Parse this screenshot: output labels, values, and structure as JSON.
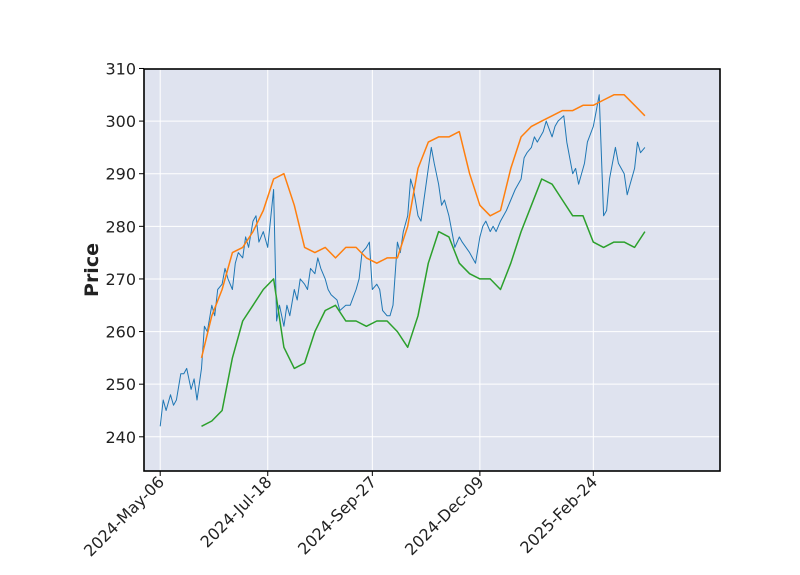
{
  "chart_data": {
    "type": "line",
    "title": "",
    "xlabel": "",
    "ylabel": "Price",
    "ylim": [
      233.5,
      309.9
    ],
    "yticks": [
      240,
      250,
      260,
      270,
      280,
      290,
      300,
      310
    ],
    "xlim": [
      "2024-04-25",
      "2025-05-21"
    ],
    "xticks": [
      "2024-May-06",
      "2024-Jul-18",
      "2024-Sep-27",
      "2024-Dec-09",
      "2025-Feb-24"
    ],
    "grid": true,
    "legend": "none",
    "background": "#dfe3ef",
    "series": [
      {
        "color": "#1f77b4",
        "points": [
          [
            "2024-05-06",
            242
          ],
          [
            "2024-05-08",
            247
          ],
          [
            "2024-05-10",
            245
          ],
          [
            "2024-05-13",
            248
          ],
          [
            "2024-05-15",
            246
          ],
          [
            "2024-05-17",
            247
          ],
          [
            "2024-05-20",
            252
          ],
          [
            "2024-05-22",
            252
          ],
          [
            "2024-05-24",
            253
          ],
          [
            "2024-05-27",
            249
          ],
          [
            "2024-05-29",
            251
          ],
          [
            "2024-05-31",
            247
          ],
          [
            "2024-06-03",
            253
          ],
          [
            "2024-06-05",
            261
          ],
          [
            "2024-06-07",
            260
          ],
          [
            "2024-06-10",
            265
          ],
          [
            "2024-06-12",
            263
          ],
          [
            "2024-06-14",
            268
          ],
          [
            "2024-06-17",
            269
          ],
          [
            "2024-06-19",
            272
          ],
          [
            "2024-06-21",
            270
          ],
          [
            "2024-06-24",
            268
          ],
          [
            "2024-06-26",
            273
          ],
          [
            "2024-06-28",
            275
          ],
          [
            "2024-07-01",
            274
          ],
          [
            "2024-07-03",
            278
          ],
          [
            "2024-07-05",
            276
          ],
          [
            "2024-07-08",
            281
          ],
          [
            "2024-07-10",
            282
          ],
          [
            "2024-07-12",
            277
          ],
          [
            "2024-07-15",
            279
          ],
          [
            "2024-07-18",
            276
          ],
          [
            "2024-07-22",
            287
          ],
          [
            "2024-07-24",
            262
          ],
          [
            "2024-07-26",
            265
          ],
          [
            "2024-07-29",
            261
          ],
          [
            "2024-07-31",
            265
          ],
          [
            "2024-08-02",
            263
          ],
          [
            "2024-08-05",
            268
          ],
          [
            "2024-08-07",
            266
          ],
          [
            "2024-08-09",
            270
          ],
          [
            "2024-08-12",
            269
          ],
          [
            "2024-08-14",
            268
          ],
          [
            "2024-08-16",
            272
          ],
          [
            "2024-08-19",
            271
          ],
          [
            "2024-08-21",
            274
          ],
          [
            "2024-08-23",
            272
          ],
          [
            "2024-08-26",
            270
          ],
          [
            "2024-08-28",
            268
          ],
          [
            "2024-08-30",
            267
          ],
          [
            "2024-09-03",
            266
          ],
          [
            "2024-09-05",
            264
          ],
          [
            "2024-09-09",
            265
          ],
          [
            "2024-09-12",
            265
          ],
          [
            "2024-09-16",
            268
          ],
          [
            "2024-09-18",
            270
          ],
          [
            "2024-09-20",
            275
          ],
          [
            "2024-09-23",
            276
          ],
          [
            "2024-09-25",
            277
          ],
          [
            "2024-09-27",
            268
          ],
          [
            "2024-09-30",
            269
          ],
          [
            "2024-10-02",
            268
          ],
          [
            "2024-10-04",
            264
          ],
          [
            "2024-10-07",
            263
          ],
          [
            "2024-10-09",
            263
          ],
          [
            "2024-10-11",
            265
          ],
          [
            "2024-10-14",
            277
          ],
          [
            "2024-10-16",
            275
          ],
          [
            "2024-10-18",
            279
          ],
          [
            "2024-10-21",
            282
          ],
          [
            "2024-10-23",
            289
          ],
          [
            "2024-10-25",
            287
          ],
          [
            "2024-10-28",
            282
          ],
          [
            "2024-10-30",
            281
          ],
          [
            "2024-11-01",
            285
          ],
          [
            "2024-11-04",
            291
          ],
          [
            "2024-11-06",
            295
          ],
          [
            "2024-11-08",
            292
          ],
          [
            "2024-11-11",
            288
          ],
          [
            "2024-11-13",
            284
          ],
          [
            "2024-11-15",
            285
          ],
          [
            "2024-11-18",
            282
          ],
          [
            "2024-11-20",
            279
          ],
          [
            "2024-11-22",
            276
          ],
          [
            "2024-11-25",
            278
          ],
          [
            "2024-11-27",
            277
          ],
          [
            "2024-12-02",
            275
          ],
          [
            "2024-12-04",
            274
          ],
          [
            "2024-12-06",
            273
          ],
          [
            "2024-12-09",
            278
          ],
          [
            "2024-12-11",
            280
          ],
          [
            "2024-12-13",
            281
          ],
          [
            "2024-12-16",
            279
          ],
          [
            "2024-12-18",
            280
          ],
          [
            "2024-12-20",
            279
          ],
          [
            "2024-12-23",
            281
          ],
          [
            "2024-12-27",
            283
          ],
          [
            "2024-12-30",
            285
          ],
          [
            "2025-01-02",
            287
          ],
          [
            "2025-01-06",
            289
          ],
          [
            "2025-01-08",
            293
          ],
          [
            "2025-01-10",
            294
          ],
          [
            "2025-01-13",
            295
          ],
          [
            "2025-01-15",
            297
          ],
          [
            "2025-01-17",
            296
          ],
          [
            "2025-01-21",
            298
          ],
          [
            "2025-01-23",
            300
          ],
          [
            "2025-01-27",
            297
          ],
          [
            "2025-01-29",
            299
          ],
          [
            "2025-01-31",
            300
          ],
          [
            "2025-02-04",
            301
          ],
          [
            "2025-02-06",
            296
          ],
          [
            "2025-02-10",
            290
          ],
          [
            "2025-02-12",
            291
          ],
          [
            "2025-02-14",
            288
          ],
          [
            "2025-02-18",
            292
          ],
          [
            "2025-02-20",
            296
          ],
          [
            "2025-02-24",
            299
          ],
          [
            "2025-02-26",
            302
          ],
          [
            "2025-02-28",
            305
          ],
          [
            "2025-03-03",
            282
          ],
          [
            "2025-03-05",
            283
          ],
          [
            "2025-03-07",
            289
          ],
          [
            "2025-03-11",
            295
          ],
          [
            "2025-03-13",
            292
          ],
          [
            "2025-03-17",
            290
          ],
          [
            "2025-03-19",
            286
          ],
          [
            "2025-03-21",
            288
          ],
          [
            "2025-03-24",
            291
          ],
          [
            "2025-03-26",
            296
          ],
          [
            "2025-03-28",
            294
          ],
          [
            "2025-03-31",
            295
          ]
        ]
      },
      {
        "color": "#ff7f0e",
        "points": [
          [
            "2024-06-03",
            255
          ],
          [
            "2024-06-10",
            263
          ],
          [
            "2024-06-17",
            268
          ],
          [
            "2024-06-24",
            275
          ],
          [
            "2024-07-01",
            276
          ],
          [
            "2024-07-08",
            279
          ],
          [
            "2024-07-15",
            283
          ],
          [
            "2024-07-22",
            289
          ],
          [
            "2024-07-29",
            290
          ],
          [
            "2024-08-05",
            284
          ],
          [
            "2024-08-12",
            276
          ],
          [
            "2024-08-19",
            275
          ],
          [
            "2024-08-26",
            276
          ],
          [
            "2024-09-02",
            274
          ],
          [
            "2024-09-09",
            276
          ],
          [
            "2024-09-16",
            276
          ],
          [
            "2024-09-23",
            274
          ],
          [
            "2024-09-30",
            273
          ],
          [
            "2024-10-07",
            274
          ],
          [
            "2024-10-14",
            274
          ],
          [
            "2024-10-21",
            280
          ],
          [
            "2024-10-28",
            291
          ],
          [
            "2024-11-04",
            296
          ],
          [
            "2024-11-11",
            297
          ],
          [
            "2024-11-18",
            297
          ],
          [
            "2024-11-25",
            298
          ],
          [
            "2024-12-02",
            290
          ],
          [
            "2024-12-09",
            284
          ],
          [
            "2024-12-16",
            282
          ],
          [
            "2024-12-23",
            283
          ],
          [
            "2024-12-30",
            291
          ],
          [
            "2025-01-06",
            297
          ],
          [
            "2025-01-13",
            299
          ],
          [
            "2025-01-20",
            300
          ],
          [
            "2025-01-27",
            301
          ],
          [
            "2025-02-03",
            302
          ],
          [
            "2025-02-10",
            302
          ],
          [
            "2025-02-17",
            303
          ],
          [
            "2025-02-24",
            303
          ],
          [
            "2025-03-03",
            304
          ],
          [
            "2025-03-10",
            305
          ],
          [
            "2025-03-17",
            305
          ],
          [
            "2025-03-24",
            303
          ],
          [
            "2025-03-31",
            301
          ]
        ]
      },
      {
        "color": "#2ca02c",
        "points": [
          [
            "2024-06-03",
            242
          ],
          [
            "2024-06-10",
            243
          ],
          [
            "2024-06-17",
            245
          ],
          [
            "2024-06-24",
            255
          ],
          [
            "2024-07-01",
            262
          ],
          [
            "2024-07-08",
            265
          ],
          [
            "2024-07-15",
            268
          ],
          [
            "2024-07-22",
            270
          ],
          [
            "2024-07-29",
            257
          ],
          [
            "2024-08-05",
            253
          ],
          [
            "2024-08-12",
            254
          ],
          [
            "2024-08-19",
            260
          ],
          [
            "2024-08-26",
            264
          ],
          [
            "2024-09-02",
            265
          ],
          [
            "2024-09-09",
            262
          ],
          [
            "2024-09-16",
            262
          ],
          [
            "2024-09-23",
            261
          ],
          [
            "2024-09-30",
            262
          ],
          [
            "2024-10-07",
            262
          ],
          [
            "2024-10-14",
            260
          ],
          [
            "2024-10-21",
            257
          ],
          [
            "2024-10-28",
            263
          ],
          [
            "2024-11-04",
            273
          ],
          [
            "2024-11-11",
            279
          ],
          [
            "2024-11-18",
            278
          ],
          [
            "2024-11-25",
            273
          ],
          [
            "2024-12-02",
            271
          ],
          [
            "2024-12-09",
            270
          ],
          [
            "2024-12-16",
            270
          ],
          [
            "2024-12-23",
            268
          ],
          [
            "2024-12-30",
            273
          ],
          [
            "2025-01-06",
            279
          ],
          [
            "2025-01-13",
            284
          ],
          [
            "2025-01-20",
            289
          ],
          [
            "2025-01-27",
            288
          ],
          [
            "2025-02-03",
            285
          ],
          [
            "2025-02-10",
            282
          ],
          [
            "2025-02-17",
            282
          ],
          [
            "2025-02-24",
            277
          ],
          [
            "2025-03-03",
            276
          ],
          [
            "2025-03-10",
            277
          ],
          [
            "2025-03-17",
            277
          ],
          [
            "2025-03-24",
            276
          ],
          [
            "2025-03-31",
            279
          ]
        ]
      }
    ]
  }
}
